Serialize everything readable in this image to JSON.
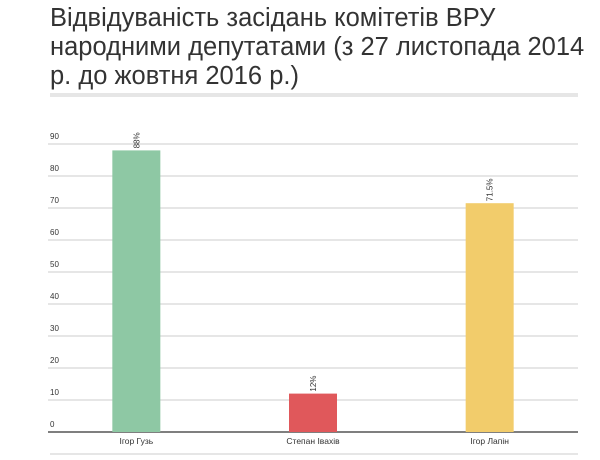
{
  "title": "Відвідуваність засідань комітетів ВРУ народними депутатами (з 27 листопада 2014 р. до жовтня 2016 р.)",
  "colors": {
    "grid": "#cccccc",
    "axis": "#333333",
    "text": "#333333"
  },
  "chart_data": {
    "type": "bar",
    "categories": [
      "Ігор Гузь",
      "Степан Івахів",
      "Ігор Лапін"
    ],
    "values": [
      88,
      12,
      71.5
    ],
    "value_labels": [
      "88%",
      "12%",
      "71.5%"
    ],
    "bar_colors": [
      "#8ec8a4",
      "#e0585b",
      "#f2cc6b"
    ],
    "ylim": [
      0,
      90
    ],
    "yticks": [
      "0",
      "10",
      "20",
      "30",
      "40",
      "50",
      "60",
      "70",
      "80",
      "90"
    ],
    "grid": true,
    "xlabel": "",
    "ylabel": ""
  }
}
